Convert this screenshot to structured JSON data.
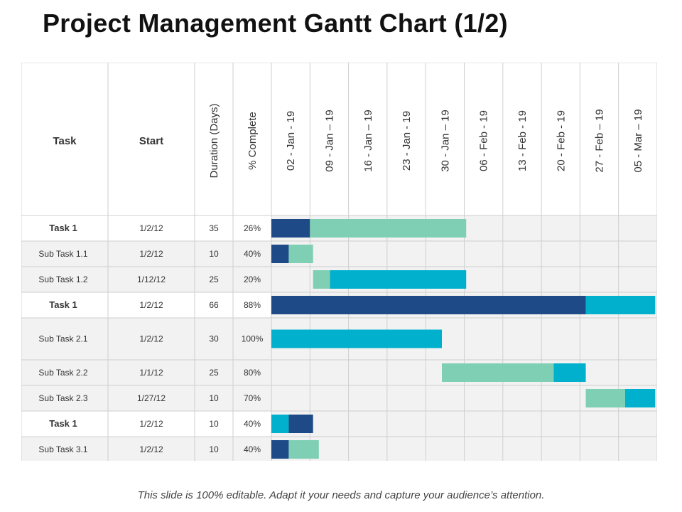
{
  "title": "Project Management Gantt Chart (1/2)",
  "footer": "This slide is 100% editable. Adapt it your needs and capture your audience’s attention.",
  "colors": {
    "header_bg": "#ffffff",
    "cell_bg": "#f2f2f2",
    "task_row_bg": "#ffffff",
    "grid": "#cfcfcf",
    "navy": "#1e4a87",
    "mint": "#7ecfb3",
    "cyan": "#00b0cc"
  },
  "chart_data": {
    "type": "table",
    "columns": {
      "task": "Task",
      "start": "Start",
      "duration": "Duration (Days)",
      "complete": "% Complete"
    },
    "weeks": [
      "02 - Jan - 19",
      "09 - Jan – 19",
      "16 - Jan – 19",
      "23 - Jan - 19",
      "30 - Jan – 19",
      "06 - Feb - 19",
      "13 - Feb - 19",
      "20 - Feb - 19",
      "27 - Feb – 19",
      "05 - Mar – 19"
    ],
    "rows": [
      {
        "task": "Task 1",
        "bold": true,
        "start": "1/2/12",
        "duration": "35",
        "complete": "26%",
        "bars": [
          {
            "from": 0,
            "to": 1,
            "color": "navy"
          },
          {
            "from": 1,
            "to": 5.05,
            "color": "mint"
          }
        ]
      },
      {
        "task": "Sub Task 1.1",
        "bold": false,
        "start": "1/2/12",
        "duration": "10",
        "complete": "40%",
        "bars": [
          {
            "from": 0,
            "to": 0.45,
            "color": "navy"
          },
          {
            "from": 0.45,
            "to": 1.08,
            "color": "mint"
          }
        ]
      },
      {
        "task": "Sub Task 1.2",
        "bold": false,
        "start": "1/12/12",
        "duration": "25",
        "complete": "20%",
        "bars": [
          {
            "from": 1.08,
            "to": 1.52,
            "color": "mint"
          },
          {
            "from": 1.52,
            "to": 5.05,
            "color": "cyan"
          }
        ]
      },
      {
        "task": "Task 1",
        "bold": true,
        "start": "1/2/12",
        "duration": "66",
        "complete": "88%",
        "bars": [
          {
            "from": 0,
            "to": 8.15,
            "color": "navy"
          },
          {
            "from": 8.15,
            "to": 9.95,
            "color": "cyan"
          }
        ]
      },
      {
        "task": "Sub Task 2.1",
        "bold": false,
        "start": "1/2/12",
        "duration": "30",
        "complete": "100%",
        "bars": [
          {
            "from": 0,
            "to": 4.42,
            "color": "cyan"
          }
        ]
      },
      {
        "task": "Sub Task 2.2",
        "bold": false,
        "start": "1/1/12",
        "duration": "25",
        "complete": "80%",
        "bars": [
          {
            "from": 4.42,
            "to": 7.32,
            "color": "mint"
          },
          {
            "from": 7.32,
            "to": 8.15,
            "color": "cyan"
          }
        ]
      },
      {
        "task": "Sub Task 2.3",
        "bold": false,
        "start": "1/27/12",
        "duration": "10",
        "complete": "70%",
        "bars": [
          {
            "from": 8.15,
            "to": 9.17,
            "color": "mint"
          },
          {
            "from": 9.17,
            "to": 9.95,
            "color": "cyan"
          }
        ]
      },
      {
        "task": "Task 1",
        "bold": true,
        "start": "1/2/12",
        "duration": "10",
        "complete": "40%",
        "bars": [
          {
            "from": 0,
            "to": 0.45,
            "color": "cyan"
          },
          {
            "from": 0.45,
            "to": 1.08,
            "color": "navy"
          }
        ]
      },
      {
        "task": "Sub Task 3.1",
        "bold": false,
        "start": "1/2/12",
        "duration": "10",
        "complete": "40%",
        "bars": [
          {
            "from": 0,
            "to": 0.45,
            "color": "navy"
          },
          {
            "from": 0.45,
            "to": 1.23,
            "color": "mint"
          }
        ]
      }
    ]
  }
}
